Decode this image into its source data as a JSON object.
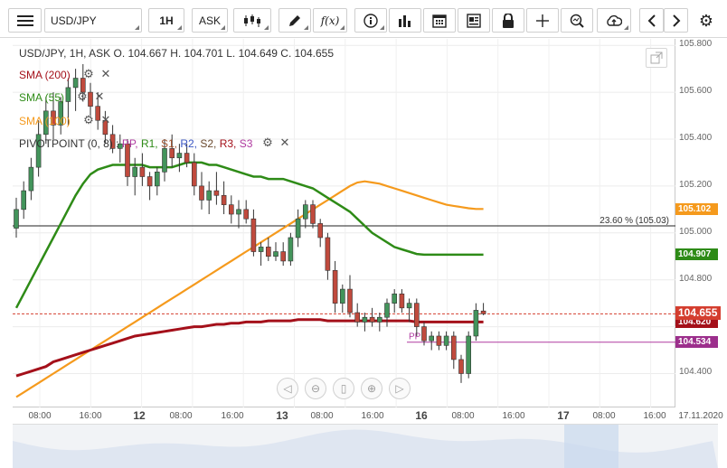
{
  "toolbar": {
    "symbol": "USD/JPY",
    "timeframe": "1H",
    "price_type": "ASK",
    "fx_label": "f(x)"
  },
  "legend": {
    "ohlc_line": "USD/JPY, 1H, ASK   O. 104.667 H. 104.701 L. 104.649 C. 104.655",
    "sma200": "SMA (200)",
    "sma55": "SMA (55)",
    "sma100": "SMA (100)",
    "pivot_prefix": "PIVOTPOINT (0, 8)",
    "pivot_sep": " : ",
    "pivot_items": [
      "PP",
      "R1",
      "S1",
      "R2",
      "S2",
      "R3",
      "S3"
    ]
  },
  "colors": {
    "sma200": "#a4101a",
    "sma55": "#2e8b17",
    "sma100": "#f59a1d",
    "bull": "#43945b",
    "bear": "#c04a3d",
    "pp": "#b03aa0",
    "r1": "#2e8b17",
    "s1": "#a0522d",
    "r2": "#3b57c4",
    "s2": "#6b4a2e",
    "r3": "#a4101a",
    "s3": "#b03aa0"
  },
  "price_axis": {
    "ticks": [
      "105.800",
      "105.600",
      "105.400",
      "105.200",
      "105.000",
      "104.800",
      "104.600",
      "104.400"
    ],
    "boxes": [
      {
        "label": "105.102",
        "color": "#f59a1d"
      },
      {
        "label": "104.907",
        "color": "#2e8b17"
      },
      {
        "label": "104.620",
        "color": "#a4101a"
      },
      {
        "label": "104.655",
        "color": "#d43e2f"
      },
      {
        "label": "104.534",
        "color": "#9c2f8c"
      }
    ]
  },
  "fib": {
    "label": "23.60 % (105.03)",
    "value": 105.03
  },
  "pivot_line": {
    "label": "PP",
    "value": 104.534
  },
  "time_axis": {
    "ticks": [
      "08:00",
      "16:00",
      "12",
      "08:00",
      "16:00",
      "13",
      "08:00",
      "16:00",
      "16",
      "08:00",
      "16:00",
      "17",
      "08:00",
      "16:00",
      "17.11.2020"
    ]
  },
  "chart_data": {
    "type": "candlestick",
    "symbol": "USD/JPY",
    "timeframe": "1H",
    "ylim": [
      104.25,
      105.82
    ],
    "candles": [
      [
        105.02,
        105.15,
        104.98,
        105.1
      ],
      [
        105.1,
        105.22,
        105.06,
        105.18
      ],
      [
        105.18,
        105.32,
        105.14,
        105.28
      ],
      [
        105.28,
        105.48,
        105.24,
        105.42
      ],
      [
        105.42,
        105.58,
        105.38,
        105.52
      ],
      [
        105.52,
        105.6,
        105.4,
        105.46
      ],
      [
        105.46,
        105.58,
        105.42,
        105.56
      ],
      [
        105.56,
        105.66,
        105.46,
        105.62
      ],
      [
        105.62,
        105.7,
        105.52,
        105.66
      ],
      [
        105.66,
        105.72,
        105.56,
        105.6
      ],
      [
        105.6,
        105.64,
        105.5,
        105.54
      ],
      [
        105.54,
        105.6,
        105.44,
        105.48
      ],
      [
        105.48,
        105.52,
        105.38,
        105.42
      ],
      [
        105.42,
        105.46,
        105.34,
        105.36
      ],
      [
        105.36,
        105.42,
        105.3,
        105.38
      ],
      [
        105.38,
        105.4,
        105.2,
        105.24
      ],
      [
        105.24,
        105.32,
        105.16,
        105.28
      ],
      [
        105.28,
        105.34,
        105.2,
        105.24
      ],
      [
        105.24,
        105.26,
        105.14,
        105.2
      ],
      [
        105.2,
        105.28,
        105.16,
        105.26
      ],
      [
        105.26,
        105.4,
        105.22,
        105.36
      ],
      [
        105.36,
        105.42,
        105.28,
        105.32
      ],
      [
        105.32,
        105.38,
        105.26,
        105.34
      ],
      [
        105.34,
        105.38,
        105.28,
        105.3
      ],
      [
        105.3,
        105.34,
        105.16,
        105.2
      ],
      [
        105.2,
        105.26,
        105.1,
        105.14
      ],
      [
        105.14,
        105.22,
        105.08,
        105.18
      ],
      [
        105.18,
        105.26,
        105.12,
        105.16
      ],
      [
        105.16,
        105.22,
        105.08,
        105.12
      ],
      [
        105.12,
        105.16,
        105.04,
        105.08
      ],
      [
        105.08,
        105.14,
        105.02,
        105.1
      ],
      [
        105.1,
        105.14,
        105.04,
        105.06
      ],
      [
        105.06,
        105.1,
        104.9,
        104.92
      ],
      [
        104.92,
        104.96,
        104.86,
        104.94
      ],
      [
        104.94,
        104.98,
        104.88,
        104.9
      ],
      [
        104.9,
        104.96,
        104.88,
        104.92
      ],
      [
        104.92,
        104.96,
        104.86,
        104.88
      ],
      [
        104.88,
        105.0,
        104.86,
        104.98
      ],
      [
        104.98,
        105.1,
        104.94,
        105.06
      ],
      [
        105.06,
        105.14,
        105.02,
        105.12
      ],
      [
        105.12,
        105.14,
        105.02,
        105.04
      ],
      [
        105.04,
        105.06,
        104.94,
        104.98
      ],
      [
        104.98,
        105.0,
        104.8,
        104.84
      ],
      [
        104.84,
        104.88,
        104.66,
        104.7
      ],
      [
        104.7,
        104.78,
        104.66,
        104.76
      ],
      [
        104.76,
        104.82,
        104.64,
        104.66
      ],
      [
        104.66,
        104.7,
        104.6,
        104.62
      ],
      [
        104.62,
        104.66,
        104.58,
        104.64
      ],
      [
        104.64,
        104.68,
        104.6,
        104.62
      ],
      [
        104.62,
        104.66,
        104.58,
        104.64
      ],
      [
        104.64,
        104.72,
        104.6,
        104.7
      ],
      [
        104.7,
        104.76,
        104.66,
        104.74
      ],
      [
        104.74,
        104.76,
        104.66,
        104.68
      ],
      [
        104.68,
        104.72,
        104.62,
        104.7
      ],
      [
        104.7,
        104.72,
        104.56,
        104.6
      ],
      [
        104.6,
        104.62,
        104.52,
        104.54
      ],
      [
        104.54,
        104.58,
        104.5,
        104.56
      ],
      [
        104.56,
        104.58,
        104.5,
        104.52
      ],
      [
        104.52,
        104.58,
        104.5,
        104.56
      ],
      [
        104.56,
        104.58,
        104.42,
        104.46
      ],
      [
        104.46,
        104.48,
        104.36,
        104.4
      ],
      [
        104.4,
        104.58,
        104.38,
        104.56
      ],
      [
        104.56,
        104.7,
        104.54,
        104.67
      ],
      [
        104.667,
        104.701,
        104.649,
        104.655
      ]
    ],
    "sma200": [
      104.39,
      104.4,
      104.41,
      104.42,
      104.43,
      104.45,
      104.46,
      104.47,
      104.48,
      104.49,
      104.5,
      104.51,
      104.52,
      104.53,
      104.54,
      104.55,
      104.56,
      104.565,
      104.57,
      104.575,
      104.58,
      104.585,
      104.59,
      104.595,
      104.6,
      104.6,
      104.605,
      104.61,
      104.61,
      104.615,
      104.615,
      104.62,
      104.62,
      104.62,
      104.625,
      104.625,
      104.625,
      104.625,
      104.63,
      104.63,
      104.63,
      104.63,
      104.625,
      104.625,
      104.625,
      104.625,
      104.625,
      104.625,
      104.625,
      104.625,
      104.625,
      104.625,
      104.625,
      104.625,
      104.62,
      104.62,
      104.62,
      104.62,
      104.62,
      104.62,
      104.62,
      104.62,
      104.62,
      104.62
    ],
    "sma55": [
      104.68,
      104.74,
      104.8,
      104.86,
      104.92,
      104.98,
      105.04,
      105.1,
      105.16,
      105.21,
      105.25,
      105.27,
      105.28,
      105.29,
      105.29,
      105.29,
      105.29,
      105.29,
      105.28,
      105.28,
      105.28,
      105.28,
      105.29,
      105.3,
      105.3,
      105.3,
      105.29,
      105.29,
      105.28,
      105.27,
      105.26,
      105.25,
      105.24,
      105.24,
      105.23,
      105.23,
      105.23,
      105.22,
      105.21,
      105.2,
      105.19,
      105.17,
      105.15,
      105.13,
      105.11,
      105.09,
      105.06,
      105.03,
      105.0,
      104.98,
      104.96,
      104.94,
      104.93,
      104.92,
      104.91,
      104.907,
      104.907,
      104.907,
      104.907,
      104.907,
      104.907,
      104.907,
      104.907,
      104.907
    ],
    "sma100": [
      104.3,
      104.32,
      104.34,
      104.36,
      104.38,
      104.4,
      104.42,
      104.44,
      104.46,
      104.48,
      104.5,
      104.52,
      104.54,
      104.56,
      104.58,
      104.6,
      104.62,
      104.64,
      104.66,
      104.68,
      104.7,
      104.72,
      104.74,
      104.76,
      104.78,
      104.8,
      104.82,
      104.84,
      104.86,
      104.88,
      104.9,
      104.92,
      104.94,
      104.96,
      104.98,
      105.0,
      105.02,
      105.04,
      105.06,
      105.08,
      105.1,
      105.12,
      105.14,
      105.16,
      105.18,
      105.2,
      105.215,
      105.22,
      105.215,
      105.21,
      105.2,
      105.19,
      105.18,
      105.17,
      105.16,
      105.15,
      105.14,
      105.13,
      105.12,
      105.115,
      105.11,
      105.105,
      105.102,
      105.102
    ]
  }
}
